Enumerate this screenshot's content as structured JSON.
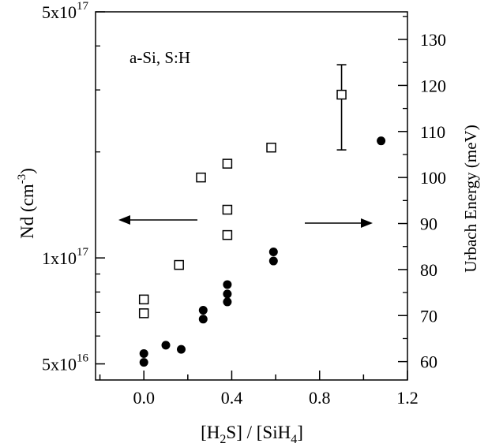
{
  "chart_data": {
    "type": "scatter",
    "title": "",
    "annotation": "a-Si, S:H",
    "xlabel": {
      "parts": [
        "[H",
        "2",
        "S] / [SiH",
        "4",
        "]"
      ]
    },
    "ylabel_left": {
      "base": "Nd (cm",
      "sup": "-3",
      "close": ")"
    },
    "ylabel_right": "Urbach Energy (meV)",
    "xlim": [
      -0.22,
      1.2
    ],
    "x_ticks": [
      0.0,
      0.4,
      0.8,
      1.2
    ],
    "x_tick_labels": [
      "0.0",
      "0.4",
      "0.8",
      "1.2"
    ],
    "ylim_left": [
      45000000000000000,
      500000000000000000
    ],
    "y_scale_left": "log",
    "y_ticks_left": [
      {
        "value": 500000000000000000,
        "mantissa": "5x10",
        "exp": "17"
      },
      {
        "value": 100000000000000000,
        "mantissa": "1x10",
        "exp": "17"
      },
      {
        "value": 50000000000000000,
        "mantissa": "5x10",
        "exp": "16"
      }
    ],
    "ylim_right": [
      56,
      136
    ],
    "y_ticks_right": [
      60,
      70,
      80,
      90,
      100,
      110,
      120,
      130
    ],
    "left_arrow_indicates": "Nd (left axis)",
    "right_arrow_indicates": "Urbach Energy (right axis)",
    "series": [
      {
        "marker": "filled-circle",
        "axis": "left",
        "points": [
          [
            0.0,
            50500000000000000
          ],
          [
            0.0,
            53500000000000000
          ],
          [
            0.1,
            56500000000000000
          ],
          [
            0.17,
            55000000000000000
          ],
          [
            0.27,
            67000000000000000
          ],
          [
            0.27,
            71000000000000000
          ],
          [
            0.38,
            75000000000000000
          ],
          [
            0.38,
            79000000000000000
          ],
          [
            0.38,
            84000000000000000
          ],
          [
            0.59,
            98000000000000000
          ],
          [
            0.59,
            104000000000000000
          ],
          [
            1.08,
            215000000000000000
          ]
        ]
      },
      {
        "marker": "open-square",
        "axis": "right",
        "points": [
          [
            0.0,
            70.5
          ],
          [
            0.0,
            73.5
          ],
          [
            0.16,
            81
          ],
          [
            0.26,
            100
          ],
          [
            0.38,
            87.5
          ],
          [
            0.38,
            93
          ],
          [
            0.38,
            103
          ],
          [
            0.58,
            106.5
          ],
          [
            0.9,
            118
          ]
        ]
      }
    ],
    "error_bar": {
      "x": 0.9,
      "y_low": 106,
      "y_high": 124.5,
      "axis": "right"
    }
  }
}
